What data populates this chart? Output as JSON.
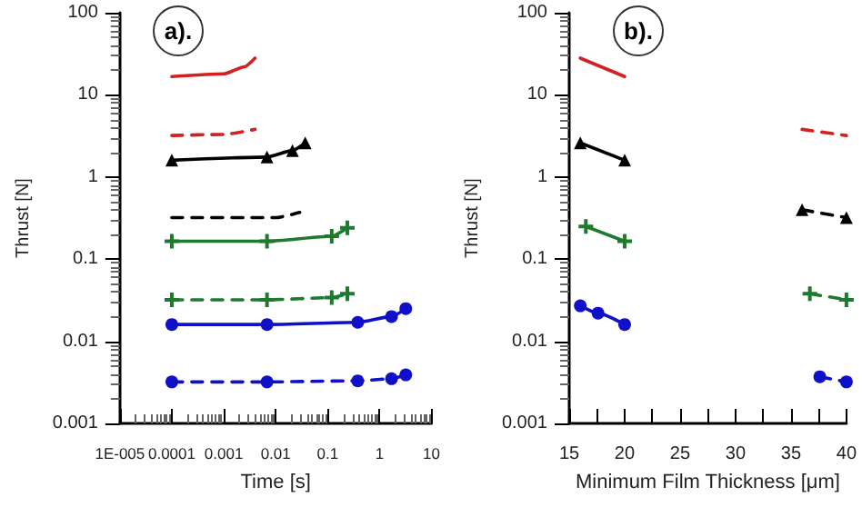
{
  "chart_data": [
    {
      "type": "line",
      "annotations": [
        "a)."
      ],
      "xlabel": "Time [s]",
      "ylabel": "Thrust [N]",
      "log": "xy",
      "grid": false,
      "xlim": [
        1e-05,
        10
      ],
      "xticks": [
        {
          "value": 1e-05,
          "label": "1E-005"
        },
        0.0001,
        0.001,
        0.01,
        0.1,
        1,
        10
      ],
      "ylim": [
        0.001,
        100
      ],
      "yticks": [
        0.001,
        0.01,
        0.1,
        1,
        10,
        100
      ],
      "series": [
        {
          "color": "#d42020",
          "line_style": "solid",
          "marker": "none",
          "x": [
            0.0001,
            0.001,
            0.0025,
            0.004
          ],
          "values": [
            16.7,
            18,
            22,
            28
          ]
        },
        {
          "color": "#d42020",
          "line_style": "dashed",
          "marker": "none",
          "x": [
            0.0001,
            0.001,
            0.004
          ],
          "values": [
            3.2,
            3.3,
            3.8
          ]
        },
        {
          "color": "#000000",
          "line_style": "solid",
          "marker": "triangle",
          "x": [
            0.0001,
            0.0068,
            0.021,
            0.037
          ],
          "values": [
            1.6,
            1.75,
            2.1,
            2.6
          ]
        },
        {
          "color": "#000000",
          "line_style": "dashed",
          "marker": "none",
          "x": [
            0.0001,
            0.01,
            0.029
          ],
          "values": [
            0.32,
            0.32,
            0.37
          ]
        },
        {
          "color": "#1e7a2e",
          "line_style": "solid",
          "marker": "cross",
          "x": [
            0.0001,
            0.0068,
            0.12,
            0.24
          ],
          "values": [
            0.165,
            0.165,
            0.19,
            0.24
          ]
        },
        {
          "color": "#1e7a2e",
          "line_style": "dashed",
          "marker": "cross",
          "x": [
            0.0001,
            0.0068,
            0.12,
            0.24
          ],
          "values": [
            0.032,
            0.032,
            0.034,
            0.038
          ]
        },
        {
          "color": "#1010c8",
          "line_style": "solid",
          "marker": "circle",
          "x": [
            0.0001,
            0.0068,
            0.38,
            1.7,
            3.2
          ],
          "values": [
            0.016,
            0.016,
            0.017,
            0.02,
            0.025
          ]
        },
        {
          "color": "#1010c8",
          "line_style": "dashed",
          "marker": "circle",
          "x": [
            0.0001,
            0.0068,
            0.38,
            1.7,
            3.2
          ],
          "values": [
            0.0032,
            0.0032,
            0.0033,
            0.0035,
            0.0039
          ]
        }
      ]
    },
    {
      "type": "line",
      "annotations": [
        "b)."
      ],
      "xlabel": "Minimum Film Thickness [μm]",
      "ylabel": "Thrust [N]",
      "log": "y",
      "grid": false,
      "xlim": [
        15,
        40
      ],
      "xticks": [
        15,
        {
          "value": 17.5,
          "label": null
        },
        20,
        {
          "value": 22.5,
          "label": null
        },
        25,
        {
          "value": 27.5,
          "label": null
        },
        30,
        {
          "value": 32.5,
          "label": null
        },
        35,
        {
          "value": 37.5,
          "label": null
        },
        40
      ],
      "ylim": [
        0.001,
        100
      ],
      "yticks": [
        0.001,
        0.01,
        0.1,
        1,
        10,
        100
      ],
      "series": [
        {
          "color": "#d42020",
          "line_style": "solid",
          "marker": "none",
          "x": [
            16,
            20
          ],
          "values": [
            28,
            16.7
          ]
        },
        {
          "color": "#d42020",
          "line_style": "dashed",
          "marker": "none",
          "x": [
            36,
            40
          ],
          "values": [
            3.8,
            3.2
          ]
        },
        {
          "color": "#000000",
          "line_style": "solid",
          "marker": "triangle",
          "x": [
            16,
            20
          ],
          "values": [
            2.6,
            1.6
          ]
        },
        {
          "color": "#000000",
          "line_style": "dashed",
          "marker": "triangle",
          "x": [
            36,
            40
          ],
          "values": [
            0.4,
            0.32
          ]
        },
        {
          "color": "#1e7a2e",
          "line_style": "solid",
          "marker": "cross",
          "x": [
            16.5,
            20
          ],
          "values": [
            0.25,
            0.165
          ]
        },
        {
          "color": "#1e7a2e",
          "line_style": "dashed",
          "marker": "cross",
          "x": [
            36.7,
            40
          ],
          "values": [
            0.038,
            0.032
          ]
        },
        {
          "color": "#1010c8",
          "line_style": "solid",
          "marker": "circle",
          "x": [
            16,
            17.6,
            20
          ],
          "values": [
            0.027,
            0.022,
            0.016
          ]
        },
        {
          "color": "#1010c8",
          "line_style": "dashed",
          "marker": "circle",
          "x": [
            37.6,
            40
          ],
          "values": [
            0.0037,
            0.0032
          ]
        }
      ]
    }
  ]
}
